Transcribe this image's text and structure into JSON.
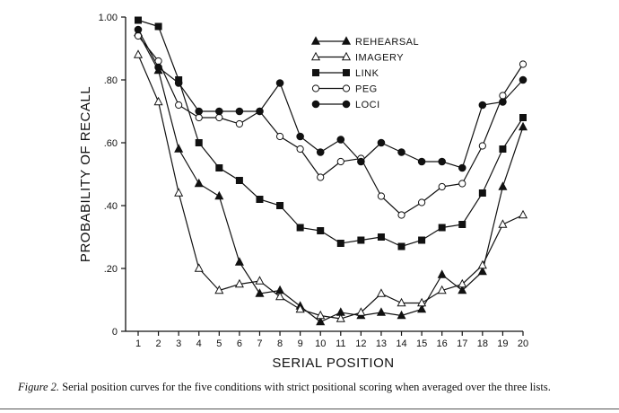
{
  "chart_data": {
    "type": "line",
    "xlabel": "SERIAL POSITION",
    "ylabel": "PROBABILITY OF RECALL",
    "xlim": [
      1,
      20
    ],
    "ylim": [
      0,
      1.0
    ],
    "x_ticks": [
      "1",
      "2",
      "3",
      "4",
      "5",
      "6",
      "7",
      "8",
      "9",
      "10",
      "11",
      "12",
      "13",
      "14",
      "15",
      "16",
      "17",
      "18",
      "19",
      "20"
    ],
    "y_ticks": [
      {
        "value": 0,
        "label": "0"
      },
      {
        "value": 0.2,
        "label": ".20"
      },
      {
        "value": 0.4,
        "label": ".40"
      },
      {
        "value": 0.6,
        "label": ".60"
      },
      {
        "value": 0.8,
        "label": ".80"
      },
      {
        "value": 1.0,
        "label": "1.00"
      }
    ],
    "x": [
      1,
      2,
      3,
      4,
      5,
      6,
      7,
      8,
      9,
      10,
      11,
      12,
      13,
      14,
      15,
      16,
      17,
      18,
      19,
      20
    ],
    "series": [
      {
        "name": "REHEARSAL",
        "marker": "filled-triangle",
        "values": [
          0.95,
          0.83,
          0.58,
          0.47,
          0.43,
          0.22,
          0.12,
          0.13,
          0.08,
          0.03,
          0.06,
          0.05,
          0.06,
          0.05,
          0.07,
          0.18,
          0.13,
          0.19,
          0.46,
          0.65
        ]
      },
      {
        "name": "IMAGERY",
        "marker": "open-triangle",
        "values": [
          0.88,
          0.73,
          0.44,
          0.2,
          0.13,
          0.15,
          0.16,
          0.11,
          0.07,
          0.05,
          0.04,
          0.06,
          0.12,
          0.09,
          0.09,
          0.13,
          0.15,
          0.21,
          0.34,
          0.37
        ]
      },
      {
        "name": "LINK",
        "marker": "filled-square",
        "values": [
          0.99,
          0.97,
          0.8,
          0.6,
          0.52,
          0.48,
          0.42,
          0.4,
          0.33,
          0.32,
          0.28,
          0.29,
          0.3,
          0.27,
          0.29,
          0.33,
          0.34,
          0.44,
          0.58,
          0.68
        ]
      },
      {
        "name": "PEG",
        "marker": "open-circle",
        "values": [
          0.94,
          0.86,
          0.72,
          0.68,
          0.68,
          0.66,
          0.7,
          0.62,
          0.58,
          0.49,
          0.54,
          0.55,
          0.43,
          0.37,
          0.41,
          0.46,
          0.47,
          0.59,
          0.75,
          0.85
        ]
      },
      {
        "name": "LOCI",
        "marker": "filled-circle",
        "values": [
          0.96,
          0.84,
          0.79,
          0.7,
          0.7,
          0.7,
          0.7,
          0.79,
          0.62,
          0.57,
          0.61,
          0.54,
          0.6,
          0.57,
          0.54,
          0.54,
          0.52,
          0.72,
          0.73,
          0.8
        ]
      }
    ],
    "legend_position": "top-right"
  },
  "caption": {
    "figure_label": "Figure 2.",
    "text": " Serial position curves for the five conditions with strict positional scoring when averaged over the three lists."
  }
}
